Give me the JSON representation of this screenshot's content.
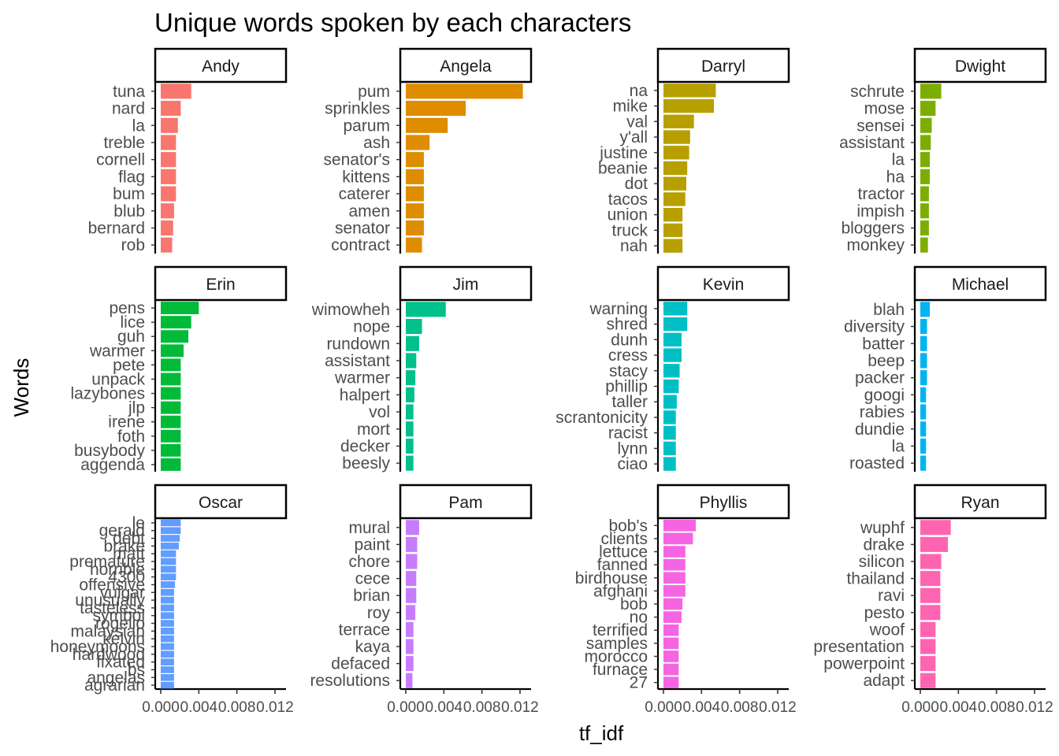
{
  "chart_data": {
    "type": "bar",
    "orientation": "horizontal",
    "title": "Unique words spoken by each characters",
    "xlabel": "tf_idf",
    "ylabel": "Words",
    "xlim": [
      0,
      0.0125
    ],
    "xticks": [
      0,
      0.004,
      0.008,
      0.012
    ],
    "xtick_labels": [
      "0.000",
      "0.004",
      "0.008",
      "0.012"
    ],
    "grid": false,
    "legend": "none",
    "facets": [
      {
        "name": "Andy",
        "color": "#F8766D",
        "words": [
          "tuna",
          "nard",
          "la",
          "treble",
          "cornell",
          "flag",
          "bum",
          "blub",
          "bernard",
          "rob"
        ],
        "values": [
          0.0032,
          0.0021,
          0.0018,
          0.0016,
          0.0016,
          0.0016,
          0.0016,
          0.0014,
          0.0013,
          0.0012
        ]
      },
      {
        "name": "Angela",
        "color": "#DE8C00",
        "words": [
          "pum",
          "sprinkles",
          "parum",
          "ash",
          "senator's",
          "kittens",
          "caterer",
          "amen",
          "senator",
          "contract"
        ],
        "values": [
          0.0123,
          0.0063,
          0.0044,
          0.0025,
          0.0019,
          0.0019,
          0.0019,
          0.0019,
          0.0019,
          0.0017
        ]
      },
      {
        "name": "Darryl",
        "color": "#B79F00",
        "words": [
          "na",
          "mike",
          "val",
          "y'all",
          "justine",
          "beanie",
          "dot",
          "tacos",
          "union",
          "truck",
          "nah"
        ],
        "values": [
          0.0055,
          0.0053,
          0.0032,
          0.0028,
          0.0027,
          0.0025,
          0.0024,
          0.0023,
          0.002,
          0.002,
          0.002
        ]
      },
      {
        "name": "Dwight",
        "color": "#7CAE00",
        "words": [
          "schrute",
          "mose",
          "sensei",
          "assistant",
          "la",
          "ha",
          "tractor",
          "impish",
          "bloggers",
          "monkey"
        ],
        "values": [
          0.0022,
          0.0016,
          0.0012,
          0.0011,
          0.001,
          0.001,
          0.0009,
          0.0009,
          0.0009,
          0.0008
        ]
      },
      {
        "name": "Erin",
        "color": "#00BA38",
        "words": [
          "pens",
          "lice",
          "guh",
          "warmer",
          "pete",
          "unpack",
          "lazybones",
          "jlp",
          "irene",
          "foth",
          "busybody",
          "aggenda"
        ],
        "values": [
          0.004,
          0.0032,
          0.0029,
          0.0024,
          0.0021,
          0.0021,
          0.0021,
          0.0021,
          0.0021,
          0.0021,
          0.0021,
          0.0021
        ]
      },
      {
        "name": "Jim",
        "color": "#00C08B",
        "words": [
          "wimowheh",
          "nope",
          "rundown",
          "assistant",
          "warmer",
          "halpert",
          "vol",
          "mort",
          "decker",
          "beesly"
        ],
        "values": [
          0.0042,
          0.0017,
          0.0014,
          0.0011,
          0.001,
          0.0009,
          0.0008,
          0.0008,
          0.0008,
          0.0008
        ]
      },
      {
        "name": "Kevin",
        "color": "#00BFC4",
        "words": [
          "warning",
          "shred",
          "dunh",
          "cress",
          "stacy",
          "phillip",
          "taller",
          "scrantonicity",
          "racist",
          "lynn",
          "ciao"
        ],
        "values": [
          0.0025,
          0.0025,
          0.0019,
          0.0019,
          0.0017,
          0.0016,
          0.0014,
          0.0013,
          0.0013,
          0.0013,
          0.0013
        ]
      },
      {
        "name": "Michael",
        "color": "#00B4F0",
        "words": [
          "blah",
          "diversity",
          "batter",
          "beep",
          "packer",
          "googi",
          "rabies",
          "dundie",
          "la",
          "roasted"
        ],
        "values": [
          0.001,
          0.0007,
          0.0007,
          0.0007,
          0.0007,
          0.0006,
          0.0006,
          0.0006,
          0.0006,
          0.0006
        ]
      },
      {
        "name": "Oscar",
        "color": "#619CFF",
        "words": [
          "le",
          "gerald",
          "debt",
          "brake",
          "matt",
          "premature",
          "horrible",
          "4300",
          "offensive",
          "vulgar",
          "unusually",
          "tasteless",
          "symbol",
          "rogelio",
          "malaysian",
          "kelvin",
          "honeymoons",
          "hardwood",
          "fixated",
          "bs",
          "angelas",
          "agrarian"
        ],
        "values": [
          0.0021,
          0.0021,
          0.002,
          0.0019,
          0.0016,
          0.0016,
          0.0016,
          0.0016,
          0.0015,
          0.0014,
          0.0014,
          0.0014,
          0.0014,
          0.0014,
          0.0014,
          0.0014,
          0.0014,
          0.0014,
          0.0014,
          0.0014,
          0.0014,
          0.0014
        ]
      },
      {
        "name": "Pam",
        "color": "#C77CFF",
        "words": [
          "mural",
          "paint",
          "chore",
          "cece",
          "brian",
          "roy",
          "terrace",
          "kaya",
          "defaced",
          "resolutions"
        ],
        "values": [
          0.0014,
          0.0012,
          0.0012,
          0.0011,
          0.0011,
          0.001,
          0.0008,
          0.0008,
          0.0008,
          0.0007
        ]
      },
      {
        "name": "Phyllis",
        "color": "#F564E3",
        "words": [
          "bob's",
          "clients",
          "lettuce",
          "fanned",
          "birdhouse",
          "afghani",
          "bob",
          "no",
          "terrified",
          "samples",
          "morocco",
          "furnace",
          "27"
        ],
        "values": [
          0.0034,
          0.0031,
          0.0023,
          0.0023,
          0.0023,
          0.0023,
          0.002,
          0.0019,
          0.0016,
          0.0016,
          0.0016,
          0.0016,
          0.0016
        ]
      },
      {
        "name": "Ryan",
        "color": "#FF64B0",
        "words": [
          "wuphf",
          "drake",
          "silicon",
          "thailand",
          "ravi",
          "pesto",
          "woof",
          "presentation",
          "powerpoint",
          "adapt"
        ],
        "values": [
          0.0032,
          0.0029,
          0.0022,
          0.0021,
          0.0021,
          0.0021,
          0.0016,
          0.0016,
          0.0016,
          0.0016
        ]
      }
    ]
  }
}
